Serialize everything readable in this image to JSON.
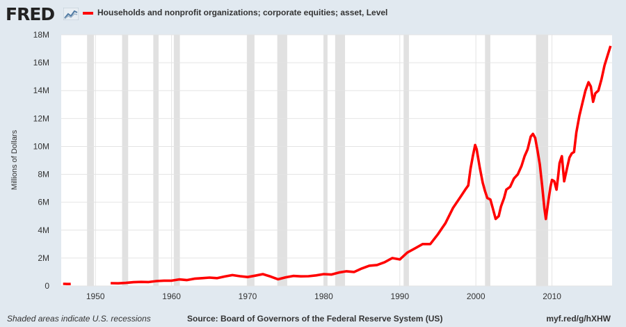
{
  "header": {
    "logo_text": "FRED",
    "logo_icon": "fred-trend-icon",
    "series_color": "#ff0000"
  },
  "footer": {
    "recession_note": "Shaded areas indicate U.S. recessions",
    "source": "Source: Board of Governors of the Federal Reserve System (US)",
    "short_url": "myf.red/g/hXHW"
  },
  "chart_data": {
    "type": "line",
    "ylabel": "Millions of Dollars",
    "xlim": [
      1945.5,
      2017.9
    ],
    "ylim": [
      0,
      18000000
    ],
    "grid": true,
    "legend_position": "top-left",
    "x_ticks": [
      1950,
      1960,
      1970,
      1980,
      1990,
      2000,
      2010
    ],
    "x_tick_labels": [
      "1950",
      "1960",
      "1970",
      "1980",
      "1990",
      "2000",
      "2010"
    ],
    "y_ticks": [
      0,
      2000000,
      4000000,
      6000000,
      8000000,
      10000000,
      12000000,
      14000000,
      16000000,
      18000000
    ],
    "y_tick_labels": [
      "0",
      "2M",
      "4M",
      "6M",
      "8M",
      "10M",
      "12M",
      "14M",
      "16M",
      "18M"
    ],
    "recessions": [
      [
        1948.9,
        1949.8
      ],
      [
        1953.5,
        1954.3
      ],
      [
        1957.6,
        1958.3
      ],
      [
        1960.3,
        1961.1
      ],
      [
        1969.9,
        1970.9
      ],
      [
        1973.9,
        1975.2
      ],
      [
        1980.0,
        1980.5
      ],
      [
        1981.5,
        1982.8
      ],
      [
        1990.5,
        1991.2
      ],
      [
        2001.2,
        2001.9
      ],
      [
        2007.9,
        2009.5
      ]
    ],
    "series": [
      {
        "name": "Households and nonprofit organizations; corporate equities; asset, Level",
        "segments": [
          {
            "x": [
              1945.75,
              1946.0,
              1946.25,
              1946.5,
              1946.75
            ],
            "y": [
              150000,
              150000,
              140000,
              140000,
              140000
            ]
          },
          {
            "x": [
              1952,
              1953,
              1954,
              1955,
              1956,
              1957,
              1958,
              1959,
              1960,
              1961,
              1962,
              1963,
              1964,
              1965,
              1966,
              1967,
              1968,
              1969,
              1970,
              1971,
              1972,
              1973,
              1974,
              1975,
              1976,
              1977,
              1978,
              1979,
              1980,
              1981,
              1982,
              1983,
              1984,
              1985,
              1986,
              1987,
              1988,
              1989,
              1990,
              1991,
              1992,
              1993,
              1994,
              1995,
              1996,
              1997,
              1998,
              1998.6,
              1999,
              1999.3,
              1999.6,
              1999.9,
              2000.1,
              2000.5,
              2000.9,
              2001.2,
              2001.5,
              2001.9,
              2002.2,
              2002.6,
              2002.8,
              2003.0,
              2003.3,
              2003.7,
              2004,
              2004.5,
              2005,
              2005.5,
              2006,
              2006.4,
              2006.8,
              2007.2,
              2007.5,
              2007.8,
              2008.1,
              2008.4,
              2008.7,
              2009.0,
              2009.2,
              2009.5,
              2009.8,
              2010.0,
              2010.3,
              2010.6,
              2010.8,
              2011.0,
              2011.3,
              2011.6,
              2012.0,
              2012.3,
              2012.6,
              2012.9,
              2013.2,
              2013.6,
              2014.0,
              2014.4,
              2014.8,
              2015.1,
              2015.4,
              2015.7,
              2016.1,
              2016.5,
              2016.9,
              2017.3,
              2017.7
            ],
            "y": [
              200000,
              190000,
              220000,
              270000,
              290000,
              280000,
              350000,
              380000,
              380000,
              470000,
              420000,
              520000,
              560000,
              600000,
              560000,
              680000,
              780000,
              700000,
              640000,
              740000,
              850000,
              680000,
              480000,
              620000,
              720000,
              690000,
              700000,
              760000,
              850000,
              820000,
              960000,
              1050000,
              1000000,
              1250000,
              1450000,
              1500000,
              1700000,
              2000000,
              1900000,
              2400000,
              2700000,
              3000000,
              3000000,
              3700000,
              4500000,
              5600000,
              6400000,
              6900000,
              7200000,
              8400000,
              9300000,
              10100000,
              9800000,
              8500000,
              7400000,
              6800000,
              6300000,
              6200000,
              5600000,
              4800000,
              4900000,
              5000000,
              5700000,
              6300000,
              6900000,
              7100000,
              7700000,
              8000000,
              8600000,
              9300000,
              9800000,
              10700000,
              10900000,
              10600000,
              9700000,
              8700000,
              7200000,
              5600000,
              4800000,
              6000000,
              7100000,
              7600000,
              7500000,
              6900000,
              7800000,
              8800000,
              9300000,
              7500000,
              8500000,
              9200000,
              9500000,
              9600000,
              11000000,
              12200000,
              13100000,
              14000000,
              14600000,
              14300000,
              13200000,
              13800000,
              14000000,
              14800000,
              15800000,
              16500000,
              17200000
            ]
          }
        ]
      }
    ]
  }
}
